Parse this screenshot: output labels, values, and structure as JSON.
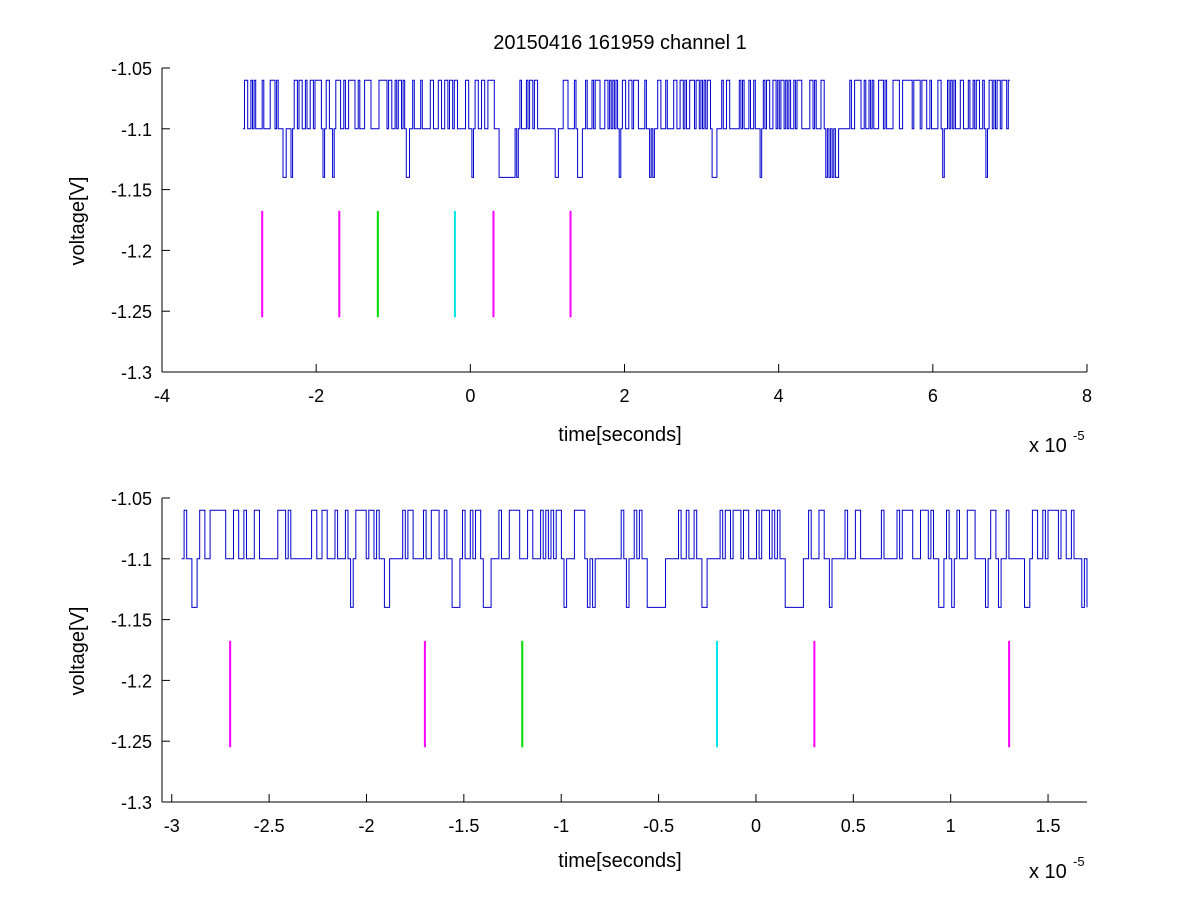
{
  "figure": {
    "title": "20150416 161959 channel 1"
  },
  "chart_data": [
    {
      "type": "line",
      "xlabel": "time[seconds]",
      "ylabel": "voltage[V]",
      "x_multiplier": "x 10",
      "x_exponent": "-5",
      "xlim": [
        -4,
        8
      ],
      "ylim": [
        -1.3,
        -1.05
      ],
      "x_ticks": [
        -4,
        -2,
        0,
        2,
        4,
        6,
        8
      ],
      "x_tick_labels": [
        "-4",
        "-2",
        "0",
        "2",
        "4",
        "6",
        "8"
      ],
      "y_ticks": [
        -1.05,
        -1.1,
        -1.15,
        -1.2,
        -1.25,
        -1.3
      ],
      "y_tick_labels": [
        "-1.05",
        "-1.1",
        "-1.15",
        "-1.2",
        "-1.25",
        "-1.3"
      ],
      "grid": false,
      "signal": {
        "color": "#0000cc",
        "x_range": [
          -2.95,
          7.0
        ],
        "levels": [
          -1.06,
          -1.1,
          -1.14
        ],
        "baseline": -1.1
      },
      "markers": [
        {
          "x": -2.7,
          "color": "#ff00ff"
        },
        {
          "x": -1.7,
          "color": "#ff00ff"
        },
        {
          "x": -1.2,
          "color": "#00dd00"
        },
        {
          "x": -0.2,
          "color": "#00e5e5"
        },
        {
          "x": 0.3,
          "color": "#ff00ff"
        },
        {
          "x": 1.3,
          "color": "#ff00ff"
        }
      ],
      "marker_range": [
        -1.1675,
        -1.255
      ]
    },
    {
      "type": "line",
      "xlabel": "time[seconds]",
      "ylabel": "voltage[V]",
      "x_multiplier": "x 10",
      "x_exponent": "-5",
      "xlim": [
        -3.05,
        1.7
      ],
      "ylim": [
        -1.3,
        -1.05
      ],
      "x_ticks": [
        -3,
        -2.5,
        -2,
        -1.5,
        -1,
        -0.5,
        0,
        0.5,
        1,
        1.5
      ],
      "x_tick_labels": [
        "-3",
        "-2.5",
        "-2",
        "-1.5",
        "-1",
        "-0.5",
        "0",
        "0.5",
        "1",
        "1.5"
      ],
      "y_ticks": [
        -1.05,
        -1.1,
        -1.15,
        -1.2,
        -1.25,
        -1.3
      ],
      "y_tick_labels": [
        "-1.05",
        "-1.1",
        "-1.15",
        "-1.2",
        "-1.25",
        "-1.3"
      ],
      "grid": false,
      "signal": {
        "color": "#0000cc",
        "x_range": [
          -2.95,
          1.7
        ],
        "levels": [
          -1.06,
          -1.1,
          -1.14
        ],
        "baseline": -1.1
      },
      "markers": [
        {
          "x": -2.7,
          "color": "#ff00ff"
        },
        {
          "x": -1.7,
          "color": "#ff00ff"
        },
        {
          "x": -1.2,
          "color": "#00dd00"
        },
        {
          "x": -0.2,
          "color": "#00e5e5"
        },
        {
          "x": 0.3,
          "color": "#ff00ff"
        },
        {
          "x": 1.3,
          "color": "#ff00ff"
        }
      ],
      "marker_range": [
        -1.1675,
        -1.255
      ]
    }
  ]
}
